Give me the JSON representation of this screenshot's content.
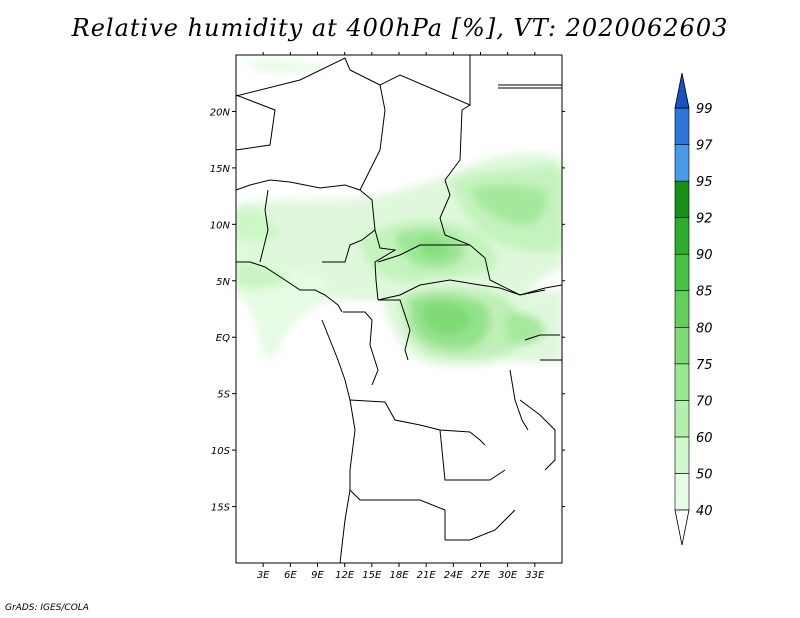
{
  "title": "Relative humidity at 400hPa [%], VT: 2020062603",
  "credit": "GrADS: IGES/COLA",
  "map": {
    "variable": "Relative humidity",
    "level": "400hPa",
    "units": "%",
    "valid_time": "2020062603",
    "lon_range": [
      0,
      36
    ],
    "lat_range": [
      -20,
      25
    ],
    "lon_ticks": [
      "3E",
      "6E",
      "9E",
      "12E",
      "15E",
      "18E",
      "21E",
      "24E",
      "27E",
      "30E",
      "33E"
    ],
    "lat_ticks": [
      "20N",
      "15N",
      "10N",
      "5N",
      "EQ",
      "5S",
      "10S",
      "15S"
    ]
  },
  "colorbar": {
    "levels": [
      "40",
      "50",
      "60",
      "70",
      "75",
      "80",
      "85",
      "90",
      "92",
      "95",
      "97",
      "99"
    ],
    "colors": [
      "#ffffff",
      "#e6fce4",
      "#cdf7c8",
      "#b3f0ad",
      "#98e891",
      "#7edc76",
      "#62cf5b",
      "#48c044",
      "#2eac2e",
      "#158f15",
      "#4899e8",
      "#2f75d8",
      "#1a52c0"
    ]
  }
}
